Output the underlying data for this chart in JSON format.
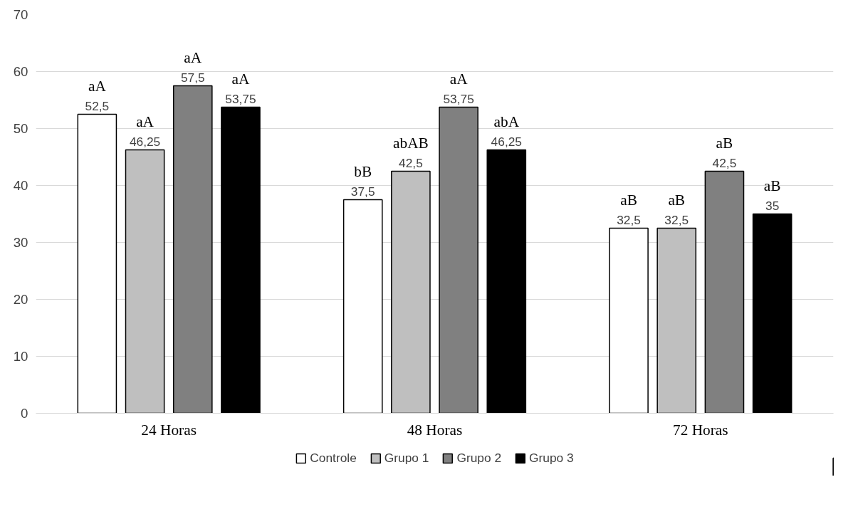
{
  "chart_data": {
    "type": "bar",
    "categories": [
      "24 Horas",
      "48 Horas",
      "72 Horas"
    ],
    "series": [
      {
        "name": "Controle",
        "color": "#ffffff",
        "values": [
          52.5,
          37.5,
          32.5
        ],
        "value_labels": [
          "52,5",
          "37,5",
          "32,5"
        ]
      },
      {
        "name": "Grupo 1",
        "color": "#bfbfbf",
        "values": [
          46.25,
          42.5,
          32.5
        ],
        "value_labels": [
          "46,25",
          "42,5",
          "32,5"
        ]
      },
      {
        "name": "Grupo 2",
        "color": "#808080",
        "values": [
          57.5,
          53.75,
          42.5
        ],
        "value_labels": [
          "57,5",
          "53,75",
          "42,5"
        ]
      },
      {
        "name": "Grupo 3",
        "color": "#000000",
        "values": [
          53.75,
          46.25,
          35
        ],
        "value_labels": [
          "53,75",
          "46,25",
          "35"
        ]
      }
    ],
    "ylim": [
      0,
      70
    ],
    "yticks": [
      0,
      10,
      20,
      30,
      40,
      50,
      60,
      70
    ],
    "grid": "y",
    "legend": "bottom",
    "annotations": [
      "aA",
      "aA",
      "aA",
      "aA",
      "bB",
      "abAB",
      "aA",
      "abA",
      "aB",
      "aB",
      "aB",
      "aB"
    ]
  }
}
